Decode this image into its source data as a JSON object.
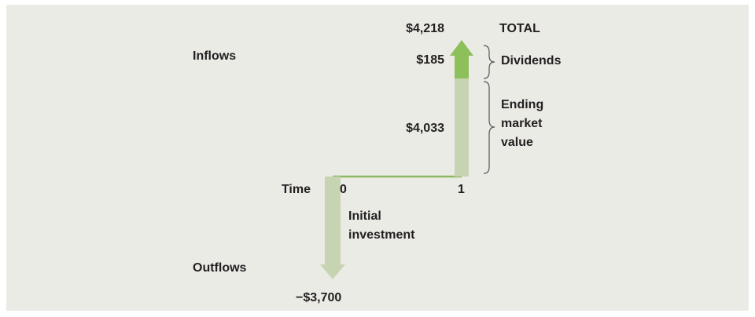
{
  "labels": {
    "inflows": "Inflows",
    "outflows": "Outflows",
    "time": "Time"
  },
  "timeline": {
    "points": [
      "0",
      "1"
    ]
  },
  "inflow": {
    "total": "$4,218",
    "total_label": "TOTAL",
    "dividends": "$185",
    "dividends_label": "Dividends",
    "ending_value": "$4,033",
    "ending_value_label": [
      "Ending",
      "market",
      "value"
    ]
  },
  "outflow": {
    "amount": "−$3,700",
    "label": [
      "Initial",
      "investment"
    ]
  }
}
